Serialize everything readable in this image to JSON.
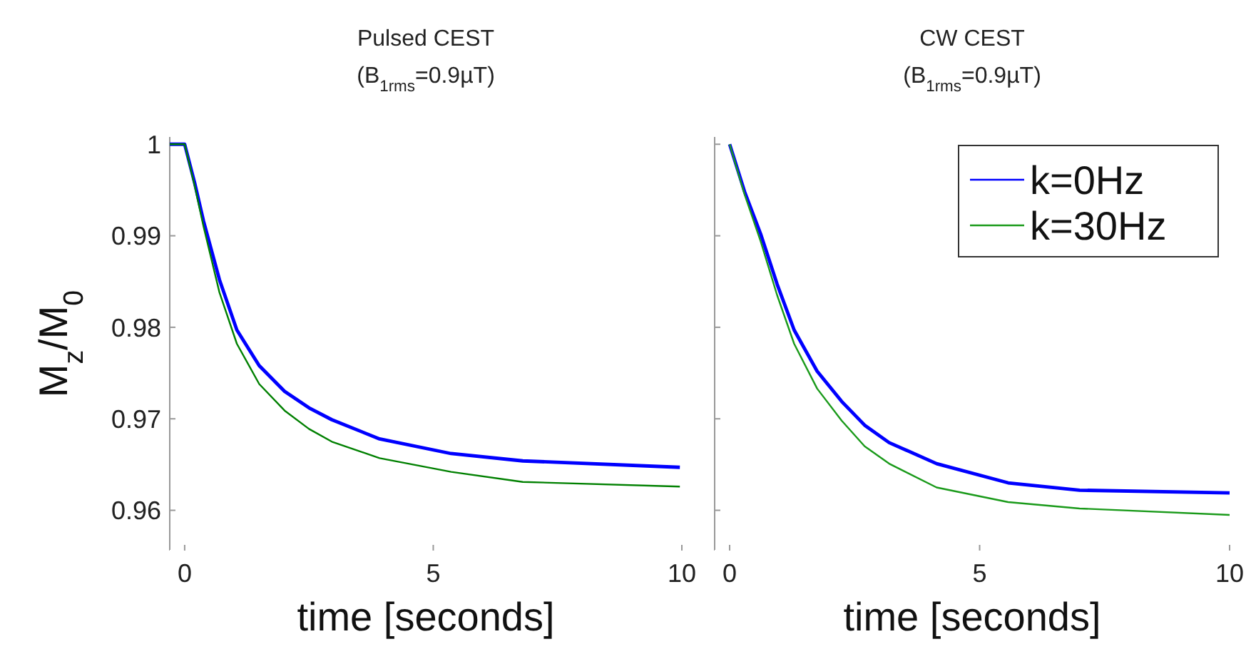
{
  "chart_data": [
    {
      "type": "line",
      "title": "Pulsed CEST",
      "subtitle": "(B$_{1rms}$=0.9µT)",
      "xlabel": "time [seconds]",
      "ylabel": "M$_{z}$/M$_{0}$",
      "xlim": [
        -0.3,
        10
      ],
      "xticks": [
        0,
        5,
        10
      ],
      "ylim": [
        0.9556,
        1.0008
      ],
      "yticks": [
        {
          "value": 0.96,
          "label": "0.96"
        },
        {
          "value": 0.97,
          "label": "0.97"
        },
        {
          "value": 0.98,
          "label": "0.98"
        },
        {
          "value": 0.99,
          "label": "0.99"
        },
        1
      ],
      "grid": false,
      "legend": false,
      "series": [
        {
          "color": "#0000ff",
          "x": [
            -0.3,
            0,
            0.2,
            0.38,
            0.7,
            1.05,
            1.5,
            2.01,
            2.5,
            2.96,
            3.92,
            5.36,
            6.8,
            9.96
          ],
          "values": [
            1,
            1,
            0.9958,
            0.9916,
            0.9852,
            0.9797,
            0.9758,
            0.973,
            0.9712,
            0.9699,
            0.9678,
            0.9662,
            0.9654,
            0.9647
          ]
        },
        {
          "color": "#008000",
          "x": [
            -0.3,
            0,
            0.2,
            0.38,
            0.7,
            1.05,
            1.5,
            2.01,
            2.5,
            2.96,
            3.92,
            5.36,
            6.8,
            9.96
          ],
          "values": [
            1,
            1,
            0.9955,
            0.991,
            0.9838,
            0.9782,
            0.9738,
            0.9709,
            0.9689,
            0.9675,
            0.9657,
            0.9642,
            0.9631,
            0.9626
          ]
        }
      ]
    },
    {
      "type": "line",
      "title": "CW CEST",
      "subtitle": "(B$_{1rms}$=0.9µT)",
      "xlabel": "time [seconds]",
      "xlim": [
        -0.3,
        10
      ],
      "xticks": [
        0,
        5,
        10
      ],
      "ylim": [
        0.9556,
        1.0008
      ],
      "yticks": [
        {
          "value": 0.96,
          "label": null
        },
        {
          "value": 0.97,
          "label": null
        },
        {
          "value": 0.98,
          "label": null
        },
        {
          "value": 0.99,
          "label": null
        },
        {
          "value": 1,
          "label": null
        }
      ],
      "tick_labels": "x",
      "grid": false,
      "legend": "top right",
      "series": [
        {
          "name": "k=0Hz",
          "color": "#0000ff",
          "x": [
            0,
            0.3,
            0.62,
            0.95,
            1.29,
            1.75,
            2.24,
            2.7,
            3.19,
            4.14,
            5.57,
            7.0,
            10
          ],
          "values": [
            1,
            0.9948,
            0.9902,
            0.9847,
            0.9797,
            0.9752,
            0.9719,
            0.9693,
            0.9674,
            0.9651,
            0.963,
            0.9622,
            0.9619
          ]
        },
        {
          "name": "k=30Hz",
          "color": "#1a9a1a",
          "x": [
            0,
            0.3,
            0.62,
            0.95,
            1.29,
            1.75,
            2.24,
            2.7,
            3.19,
            4.14,
            5.57,
            7.0,
            10
          ],
          "values": [
            1,
            0.9945,
            0.9894,
            0.9835,
            0.9782,
            0.9733,
            0.9698,
            0.967,
            0.9651,
            0.9625,
            0.9609,
            0.9602,
            0.9595
          ]
        }
      ]
    }
  ]
}
